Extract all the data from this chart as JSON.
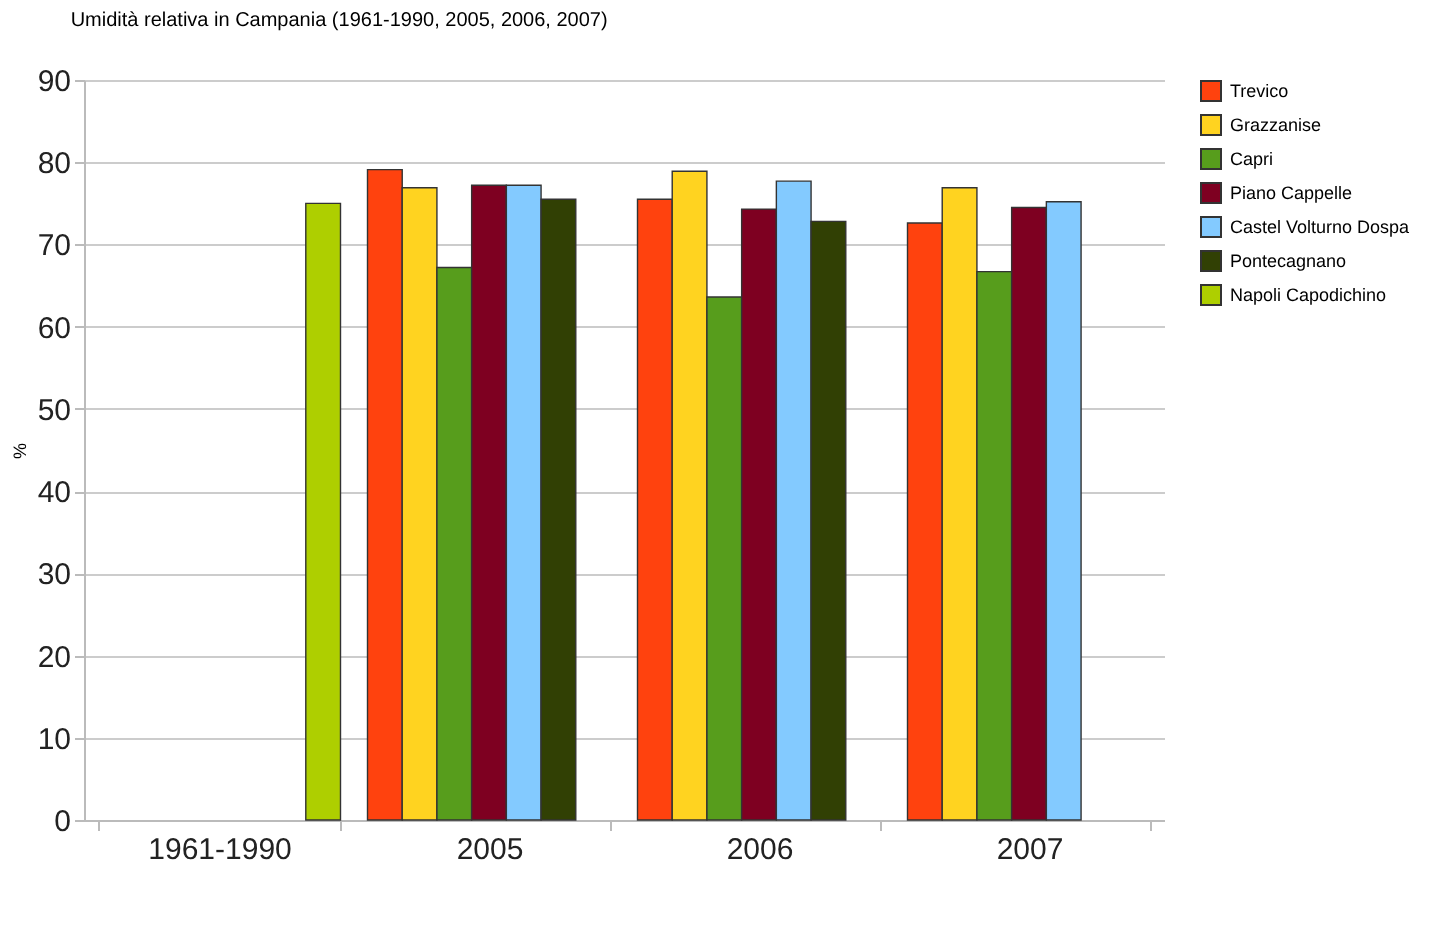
{
  "chart_data": {
    "type": "bar",
    "title": "Umidità relativa in Campania (1961-1990, 2005, 2006, 2007)",
    "ylabel": "%",
    "categories": [
      "1961-1990",
      "2005",
      "2006",
      "2007"
    ],
    "series": [
      {
        "name": "Trevico",
        "color": "#ff420e",
        "values": [
          null,
          79.1,
          75.5,
          72.6
        ]
      },
      {
        "name": "Grazzanise",
        "color": "#ffd320",
        "values": [
          null,
          76.9,
          78.9,
          76.9
        ]
      },
      {
        "name": "Capri",
        "color": "#579d1c",
        "values": [
          null,
          67.2,
          63.6,
          66.7
        ]
      },
      {
        "name": "Piano Cappelle",
        "color": "#7e0021",
        "values": [
          null,
          77.2,
          74.3,
          74.5
        ]
      },
      {
        "name": "Castel Volturno Dospa",
        "color": "#83caff",
        "values": [
          null,
          77.2,
          77.7,
          75.2
        ]
      },
      {
        "name": "Pontecagnano",
        "color": "#314004",
        "values": [
          null,
          75.5,
          72.8,
          null
        ]
      },
      {
        "name": "Napoli Capodichino",
        "color": "#aecf00",
        "values": [
          75.0,
          null,
          null,
          null
        ]
      }
    ],
    "ylim": [
      0,
      90
    ],
    "yticks": [
      0,
      10,
      20,
      30,
      40,
      50,
      60,
      70,
      80,
      90
    ],
    "grid": "y",
    "legend": "right"
  }
}
